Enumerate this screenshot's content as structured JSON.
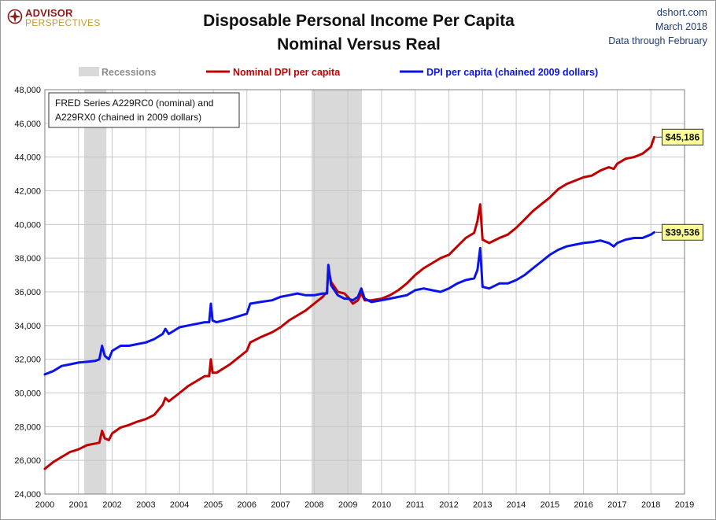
{
  "header": {
    "logo_line1": "ADVISOR",
    "logo_line2": "PERSPECTIVES",
    "title_line1": "Disposable Personal Income Per Capita",
    "title_line2": "Nominal Versus Real",
    "source_line1": "dshort.com",
    "source_line2": "March 2018",
    "source_line3": "Data through February"
  },
  "colors": {
    "nominal": "#c00000",
    "real": "#0a14e6",
    "recession": "#d9d9d9",
    "grid": "#c8c8c8",
    "callout_fill": "#ffff99"
  },
  "chart_data": {
    "type": "line",
    "xlim": [
      2000,
      2019
    ],
    "ylim": [
      24000,
      48000
    ],
    "x_ticks": [
      2000,
      2001,
      2002,
      2003,
      2004,
      2005,
      2006,
      2007,
      2008,
      2009,
      2010,
      2011,
      2012,
      2013,
      2014,
      2015,
      2016,
      2017,
      2018,
      2019
    ],
    "y_ticks": [
      24000,
      26000,
      28000,
      30000,
      32000,
      34000,
      36000,
      38000,
      40000,
      42000,
      44000,
      46000,
      48000
    ],
    "y_tick_labels": [
      "24,000",
      "26,000",
      "28,000",
      "30,000",
      "32,000",
      "34,000",
      "36,000",
      "38,000",
      "40,000",
      "42,000",
      "44,000",
      "46,000",
      "48,000"
    ],
    "grid": true,
    "legend_placement": "top",
    "legend": {
      "recessions": "Recessions",
      "nominal": "Nominal DPI per capita",
      "real": "DPI per capita (chained 2009 dollars)"
    },
    "note_line1": "FRED Series A229RC0 (nominal) and",
    "note_line2": "A229RX0 (chained in 2009 dollars)",
    "recessions": [
      {
        "start": 2001.17,
        "end": 2001.83
      },
      {
        "start": 2007.92,
        "end": 2009.42
      }
    ],
    "series": [
      {
        "name": "Nominal DPI per capita",
        "key": "nominal",
        "last_label": "$45,186",
        "points": [
          [
            2000.0,
            25500
          ],
          [
            2000.25,
            25900
          ],
          [
            2000.5,
            26200
          ],
          [
            2000.75,
            26500
          ],
          [
            2001.0,
            26650
          ],
          [
            2001.25,
            26900
          ],
          [
            2001.5,
            27000
          ],
          [
            2001.62,
            27050
          ],
          [
            2001.7,
            27750
          ],
          [
            2001.78,
            27300
          ],
          [
            2001.9,
            27200
          ],
          [
            2002.0,
            27600
          ],
          [
            2002.25,
            27950
          ],
          [
            2002.5,
            28100
          ],
          [
            2002.75,
            28300
          ],
          [
            2003.0,
            28450
          ],
          [
            2003.25,
            28700
          ],
          [
            2003.5,
            29300
          ],
          [
            2003.58,
            29700
          ],
          [
            2003.68,
            29500
          ],
          [
            2004.0,
            30000
          ],
          [
            2004.25,
            30400
          ],
          [
            2004.5,
            30700
          ],
          [
            2004.75,
            31000
          ],
          [
            2004.88,
            31000
          ],
          [
            2004.93,
            32000
          ],
          [
            2004.98,
            31200
          ],
          [
            2005.1,
            31200
          ],
          [
            2005.5,
            31700
          ],
          [
            2006.0,
            32500
          ],
          [
            2006.1,
            33000
          ],
          [
            2006.4,
            33300
          ],
          [
            2006.75,
            33600
          ],
          [
            2007.0,
            33900
          ],
          [
            2007.25,
            34300
          ],
          [
            2007.5,
            34600
          ],
          [
            2007.75,
            34900
          ],
          [
            2008.0,
            35300
          ],
          [
            2008.25,
            35700
          ],
          [
            2008.38,
            36000
          ],
          [
            2008.42,
            37400
          ],
          [
            2008.5,
            36600
          ],
          [
            2008.7,
            36000
          ],
          [
            2008.9,
            35900
          ],
          [
            2009.0,
            35700
          ],
          [
            2009.15,
            35300
          ],
          [
            2009.3,
            35500
          ],
          [
            2009.4,
            35900
          ],
          [
            2009.5,
            35500
          ],
          [
            2009.7,
            35500
          ],
          [
            2010.0,
            35600
          ],
          [
            2010.25,
            35800
          ],
          [
            2010.5,
            36100
          ],
          [
            2010.75,
            36500
          ],
          [
            2011.0,
            37000
          ],
          [
            2011.25,
            37400
          ],
          [
            2011.5,
            37700
          ],
          [
            2011.75,
            38000
          ],
          [
            2012.0,
            38200
          ],
          [
            2012.25,
            38700
          ],
          [
            2012.5,
            39200
          ],
          [
            2012.75,
            39500
          ],
          [
            2012.85,
            40200
          ],
          [
            2012.93,
            41200
          ],
          [
            2013.0,
            39100
          ],
          [
            2013.2,
            38900
          ],
          [
            2013.5,
            39200
          ],
          [
            2013.75,
            39400
          ],
          [
            2014.0,
            39800
          ],
          [
            2014.25,
            40300
          ],
          [
            2014.5,
            40800
          ],
          [
            2014.75,
            41200
          ],
          [
            2015.0,
            41600
          ],
          [
            2015.25,
            42100
          ],
          [
            2015.5,
            42400
          ],
          [
            2015.75,
            42600
          ],
          [
            2016.0,
            42800
          ],
          [
            2016.25,
            42900
          ],
          [
            2016.5,
            43200
          ],
          [
            2016.75,
            43400
          ],
          [
            2016.9,
            43300
          ],
          [
            2017.0,
            43600
          ],
          [
            2017.25,
            43900
          ],
          [
            2017.5,
            44000
          ],
          [
            2017.75,
            44200
          ],
          [
            2018.0,
            44600
          ],
          [
            2018.1,
            45186
          ]
        ]
      },
      {
        "name": "DPI per capita (chained 2009 dollars)",
        "key": "real",
        "last_label": "$39,536",
        "points": [
          [
            2000.0,
            31100
          ],
          [
            2000.25,
            31300
          ],
          [
            2000.5,
            31600
          ],
          [
            2000.75,
            31700
          ],
          [
            2001.0,
            31800
          ],
          [
            2001.25,
            31850
          ],
          [
            2001.5,
            31900
          ],
          [
            2001.62,
            32000
          ],
          [
            2001.7,
            32800
          ],
          [
            2001.78,
            32200
          ],
          [
            2001.9,
            32000
          ],
          [
            2002.0,
            32500
          ],
          [
            2002.25,
            32800
          ],
          [
            2002.5,
            32800
          ],
          [
            2002.75,
            32900
          ],
          [
            2003.0,
            33000
          ],
          [
            2003.25,
            33200
          ],
          [
            2003.5,
            33500
          ],
          [
            2003.58,
            33800
          ],
          [
            2003.68,
            33500
          ],
          [
            2004.0,
            33900
          ],
          [
            2004.25,
            34000
          ],
          [
            2004.5,
            34100
          ],
          [
            2004.75,
            34200
          ],
          [
            2004.88,
            34200
          ],
          [
            2004.93,
            35300
          ],
          [
            2004.98,
            34300
          ],
          [
            2005.1,
            34200
          ],
          [
            2005.5,
            34400
          ],
          [
            2006.0,
            34700
          ],
          [
            2006.1,
            35300
          ],
          [
            2006.4,
            35400
          ],
          [
            2006.75,
            35500
          ],
          [
            2007.0,
            35700
          ],
          [
            2007.25,
            35800
          ],
          [
            2007.5,
            35900
          ],
          [
            2007.75,
            35800
          ],
          [
            2008.0,
            35800
          ],
          [
            2008.25,
            35900
          ],
          [
            2008.38,
            35900
          ],
          [
            2008.42,
            37600
          ],
          [
            2008.5,
            36400
          ],
          [
            2008.7,
            35800
          ],
          [
            2008.9,
            35600
          ],
          [
            2009.0,
            35600
          ],
          [
            2009.15,
            35500
          ],
          [
            2009.3,
            35700
          ],
          [
            2009.4,
            36200
          ],
          [
            2009.5,
            35600
          ],
          [
            2009.7,
            35400
          ],
          [
            2010.0,
            35500
          ],
          [
            2010.25,
            35600
          ],
          [
            2010.5,
            35700
          ],
          [
            2010.75,
            35800
          ],
          [
            2011.0,
            36100
          ],
          [
            2011.25,
            36200
          ],
          [
            2011.5,
            36100
          ],
          [
            2011.75,
            36000
          ],
          [
            2012.0,
            36200
          ],
          [
            2012.25,
            36500
          ],
          [
            2012.5,
            36700
          ],
          [
            2012.75,
            36800
          ],
          [
            2012.85,
            37300
          ],
          [
            2012.93,
            38600
          ],
          [
            2013.0,
            36300
          ],
          [
            2013.2,
            36200
          ],
          [
            2013.5,
            36500
          ],
          [
            2013.75,
            36500
          ],
          [
            2014.0,
            36700
          ],
          [
            2014.25,
            37000
          ],
          [
            2014.5,
            37400
          ],
          [
            2014.75,
            37800
          ],
          [
            2015.0,
            38200
          ],
          [
            2015.25,
            38500
          ],
          [
            2015.5,
            38700
          ],
          [
            2015.75,
            38800
          ],
          [
            2016.0,
            38900
          ],
          [
            2016.25,
            38950
          ],
          [
            2016.5,
            39050
          ],
          [
            2016.75,
            38900
          ],
          [
            2016.9,
            38700
          ],
          [
            2017.0,
            38900
          ],
          [
            2017.25,
            39100
          ],
          [
            2017.5,
            39200
          ],
          [
            2017.75,
            39200
          ],
          [
            2018.0,
            39400
          ],
          [
            2018.1,
            39536
          ]
        ]
      }
    ]
  }
}
